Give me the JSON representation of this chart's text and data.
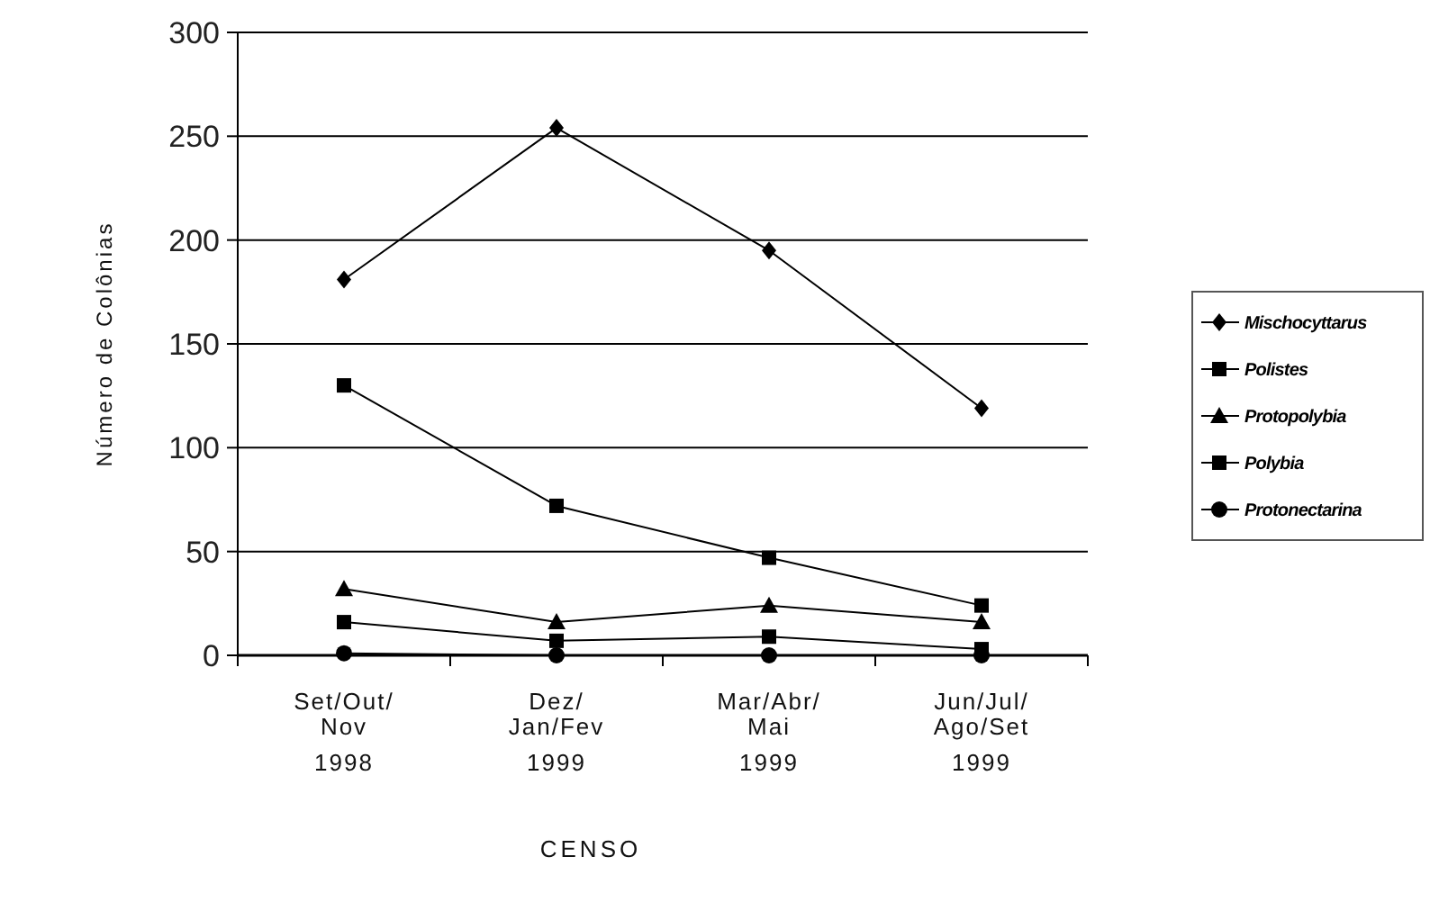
{
  "chart_data": {
    "type": "line",
    "xlabel": "CENSO",
    "ylabel": "Número de Colônias",
    "categories": [
      "Set/Out/\nNov\n1998",
      "Dez/\nJan/Fev\n1999",
      "Mar/Abr/\nMai\n1999",
      "Jun/Jul/\nAgo/Set\n1999"
    ],
    "ylim": [
      0,
      300
    ],
    "yticks": [
      0,
      50,
      100,
      150,
      200,
      250,
      300
    ],
    "grid": "y",
    "legend": "right",
    "series": [
      {
        "name": "Mischocyttarus",
        "color": "#000000",
        "marker": "diamond",
        "values": [
          181,
          254,
          195,
          119
        ]
      },
      {
        "name": "Polistes",
        "color": "#000000",
        "marker": "square",
        "values": [
          130,
          72,
          47,
          24
        ]
      },
      {
        "name": "Protopolybia",
        "color": "#000000",
        "marker": "triangle",
        "values": [
          32,
          16,
          24,
          16
        ]
      },
      {
        "name": "Polybia",
        "color": "#000000",
        "marker": "square",
        "values": [
          16,
          7,
          9,
          3
        ]
      },
      {
        "name": "Protonectarina",
        "color": "#000000",
        "marker": "circle",
        "values": [
          1,
          0,
          0,
          0
        ]
      }
    ]
  }
}
